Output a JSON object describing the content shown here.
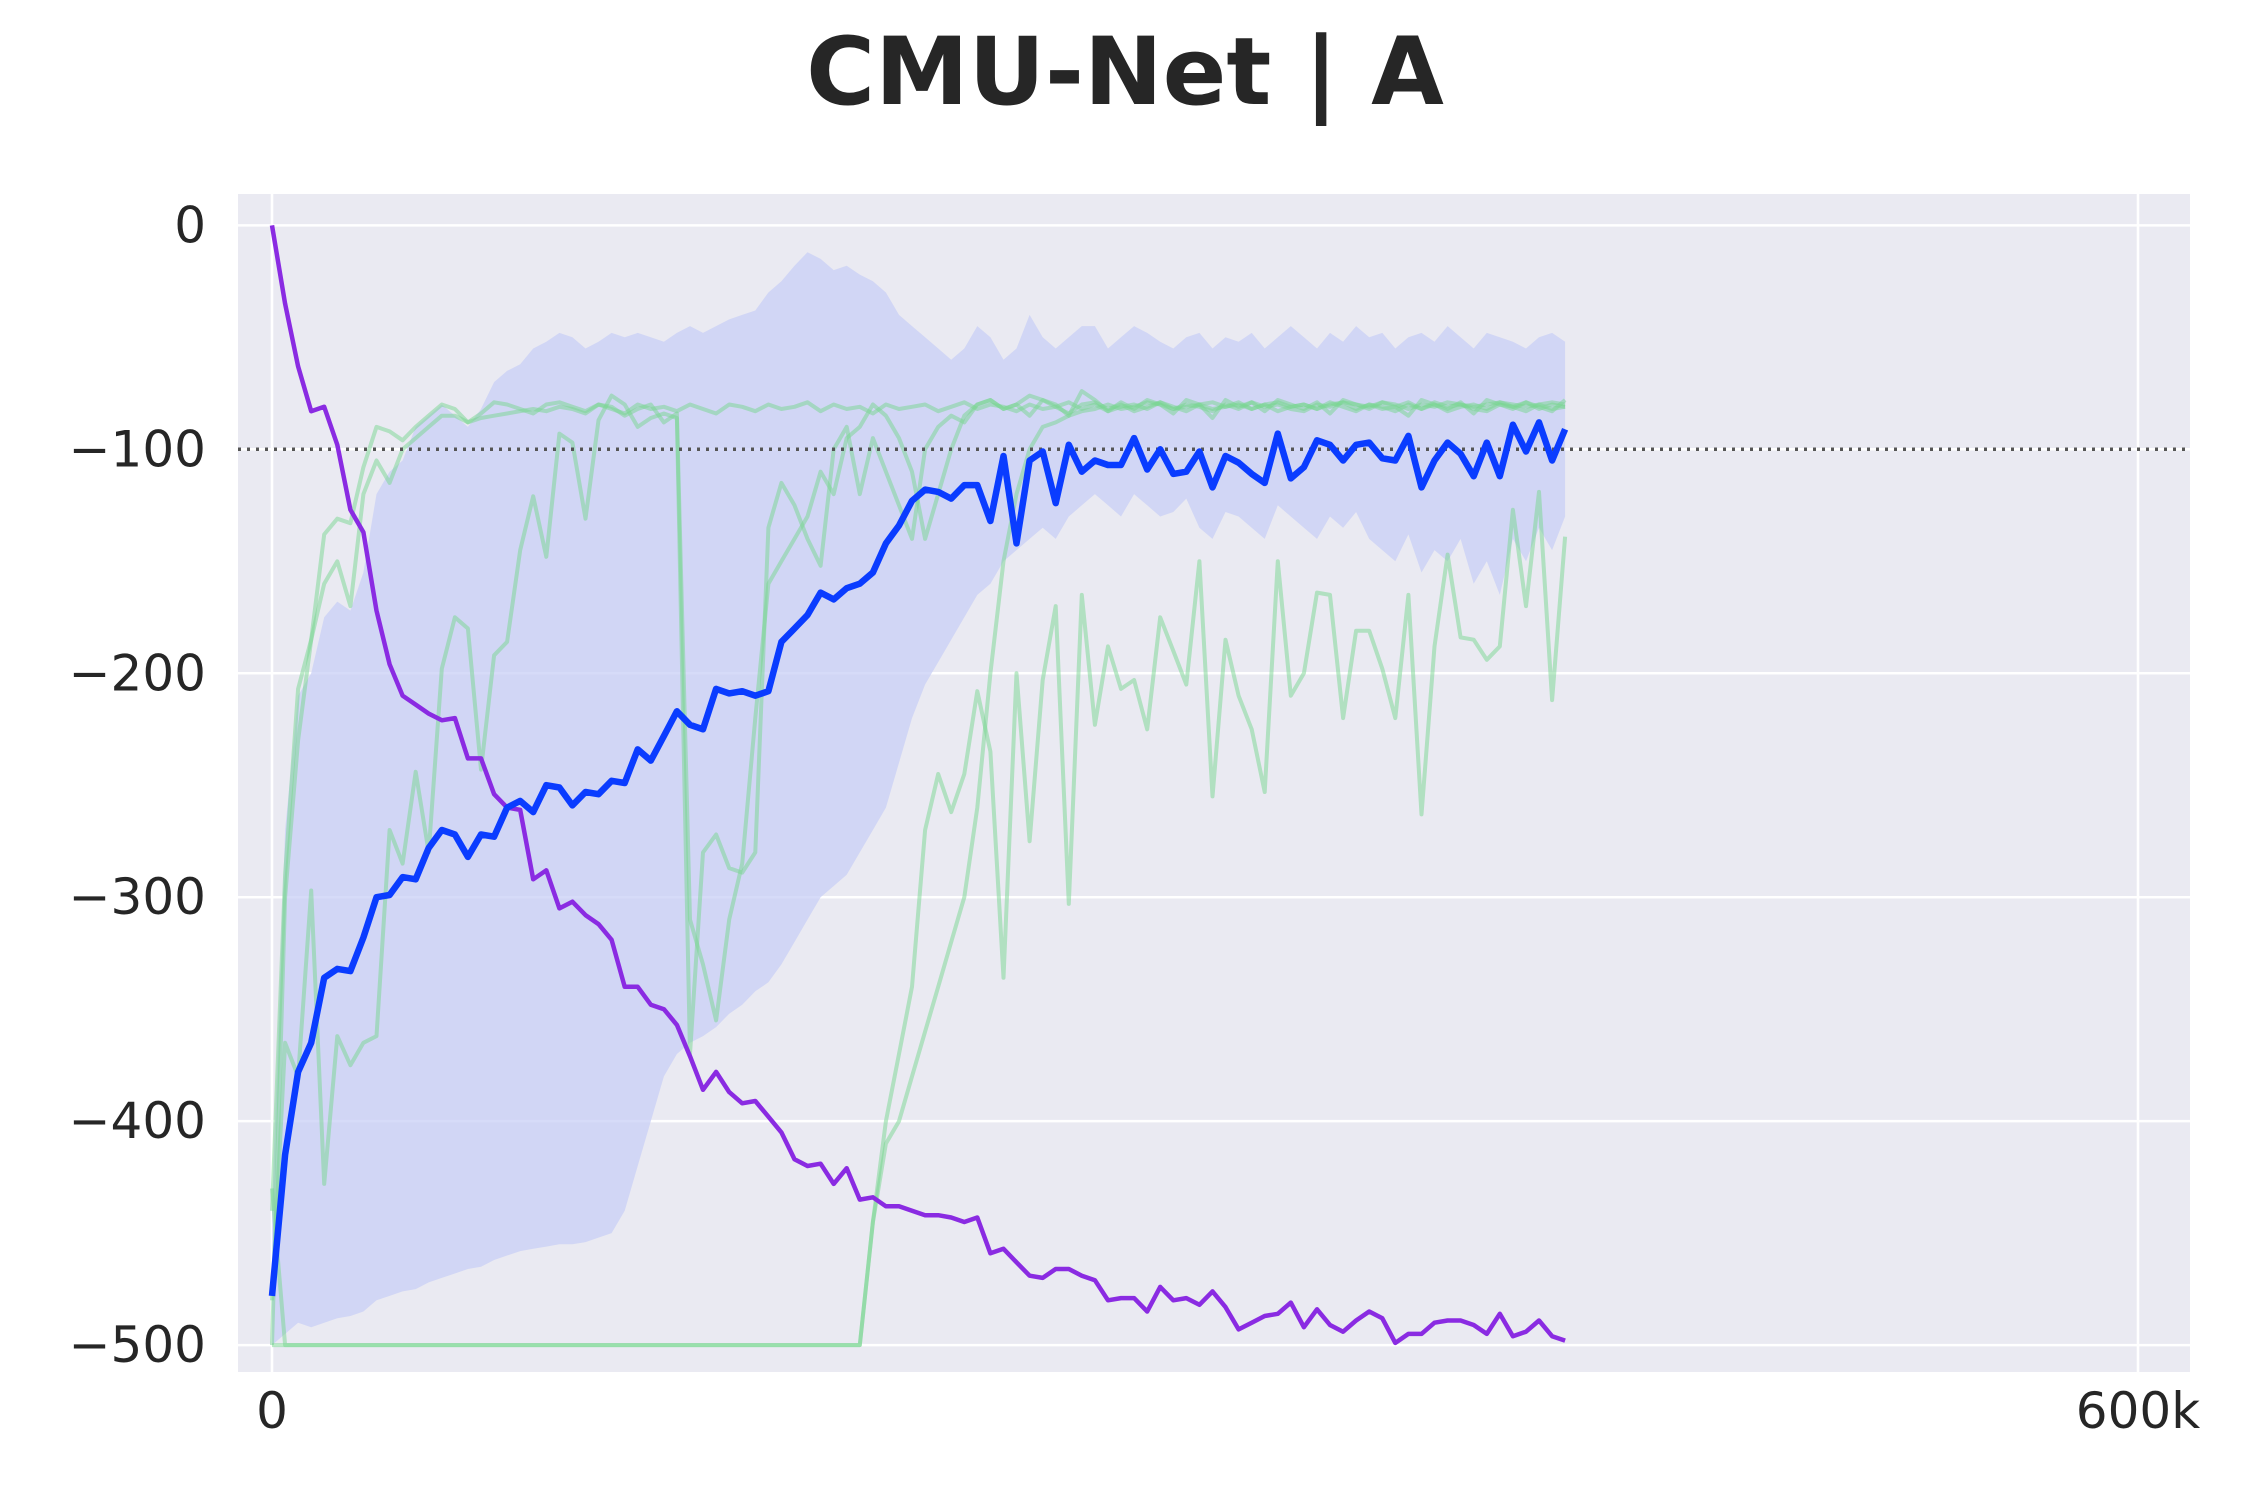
{
  "chart_data": {
    "type": "line",
    "title": "CMU-Net | A",
    "xlabel": "",
    "ylabel": "",
    "x_range": [
      0,
      630000
    ],
    "ylim": [
      -512,
      14
    ],
    "x_ticks": [
      {
        "value": 0,
        "label": "0"
      },
      {
        "value": 600000,
        "label": "600k"
      }
    ],
    "y_ticks": [
      {
        "value": 0,
        "label": "0"
      },
      {
        "value": -100,
        "label": "−100"
      },
      {
        "value": -200,
        "label": "−200"
      },
      {
        "value": -300,
        "label": "−300"
      },
      {
        "value": -400,
        "label": "−400"
      },
      {
        "value": -500,
        "label": "−500"
      }
    ],
    "reference_line": {
      "y": -100,
      "style": "dotted",
      "color": "#555555"
    },
    "grid": true,
    "background": "#eaeaf2",
    "colors": {
      "mean": "#0a3cff",
      "band": "#c8cff5",
      "runs": "#77d68f",
      "decay": "#8a2be2"
    },
    "x_step": 4200,
    "decay_curve": [
      0,
      -35,
      -63,
      -83,
      -81,
      -98,
      -127,
      -137,
      -172,
      -196,
      -210,
      -214,
      -218,
      -221,
      -220,
      -238,
      -238,
      -254,
      -260,
      -261,
      -292,
      -288,
      -305,
      -302,
      -308,
      -312,
      -319,
      -340,
      -340,
      -348,
      -350,
      -357,
      -371,
      -386,
      -378,
      -387,
      -392,
      -391,
      -398,
      -405,
      -417,
      -420,
      -419,
      -428,
      -421,
      -435,
      -434,
      -438,
      -438,
      -440,
      -442,
      -442,
      -443,
      -445,
      -443,
      -459,
      -457,
      -463,
      -469,
      -470,
      -466,
      -466,
      -469,
      -471,
      -480,
      -479,
      -479,
      -485,
      -474,
      -480,
      -479,
      -482,
      -476,
      -483,
      -493,
      -490,
      -487,
      -486,
      -481,
      -492,
      -484,
      -491,
      -494,
      -489,
      -485,
      -488,
      -499,
      -495,
      -495,
      -490,
      -489,
      -489,
      -491,
      -495,
      -486,
      -496,
      -494,
      -489,
      -496,
      -498
    ],
    "mean_curve": [
      -478,
      -415,
      -378,
      -365,
      -336,
      -332,
      -333,
      -318,
      -300,
      -299,
      -291,
      -292,
      -278,
      -270,
      -272,
      -282,
      -272,
      -273,
      -260,
      -257,
      -262,
      -250,
      -251,
      -259,
      -253,
      -254,
      -248,
      -249,
      -234,
      -239,
      -228,
      -217,
      -223,
      -225,
      -207,
      -209,
      -208,
      -210,
      -208,
      -186,
      -180,
      -174,
      -164,
      -167,
      -162,
      -160,
      -155,
      -142,
      -134,
      -123,
      -118,
      -119,
      -122,
      -116,
      -116,
      -132,
      -103,
      -142,
      -105,
      -101,
      -124,
      -98,
      -110,
      -105,
      -107,
      -107,
      -95,
      -109,
      -100,
      -111,
      -110,
      -101,
      -117,
      -103,
      -106,
      -111,
      -115,
      -93,
      -113,
      -108,
      -96,
      -98,
      -105,
      -98,
      -97,
      -104,
      -105,
      -94,
      -117,
      -105,
      -97,
      -102,
      -112,
      -97,
      -112,
      -89,
      -101,
      -88,
      -105,
      -91
    ],
    "band_upper": [
      -440,
      -270,
      -210,
      -200,
      -175,
      -168,
      -172,
      -155,
      -120,
      -110,
      -105,
      -90,
      -85,
      -80,
      -85,
      -90,
      -82,
      -70,
      -65,
      -62,
      -55,
      -52,
      -48,
      -50,
      -55,
      -52,
      -48,
      -50,
      -48,
      -50,
      -52,
      -48,
      -45,
      -48,
      -45,
      -42,
      -40,
      -38,
      -30,
      -25,
      -18,
      -12,
      -15,
      -20,
      -18,
      -22,
      -25,
      -30,
      -40,
      -45,
      -50,
      -55,
      -60,
      -55,
      -45,
      -50,
      -60,
      -55,
      -40,
      -50,
      -55,
      -50,
      -45,
      -45,
      -55,
      -50,
      -45,
      -48,
      -52,
      -55,
      -50,
      -48,
      -55,
      -50,
      -52,
      -48,
      -55,
      -50,
      -45,
      -50,
      -55,
      -48,
      -52,
      -45,
      -50,
      -48,
      -55,
      -50,
      -48,
      -52,
      -45,
      -50,
      -55,
      -48,
      -50,
      -52,
      -55,
      -50,
      -48,
      -52
    ],
    "band_lower": [
      -500,
      -495,
      -490,
      -492,
      -490,
      -488,
      -487,
      -485,
      -480,
      -478,
      -476,
      -475,
      -472,
      -470,
      -468,
      -466,
      -465,
      -462,
      -460,
      -458,
      -457,
      -456,
      -455,
      -455,
      -454,
      -452,
      -450,
      -440,
      -420,
      -400,
      -380,
      -370,
      -365,
      -362,
      -358,
      -352,
      -348,
      -342,
      -338,
      -330,
      -320,
      -310,
      -300,
      -295,
      -290,
      -280,
      -270,
      -260,
      -240,
      -220,
      -205,
      -195,
      -185,
      -175,
      -165,
      -160,
      -150,
      -145,
      -140,
      -135,
      -140,
      -130,
      -125,
      -120,
      -125,
      -130,
      -120,
      -125,
      -130,
      -128,
      -122,
      -135,
      -140,
      -128,
      -130,
      -135,
      -140,
      -125,
      -130,
      -135,
      -140,
      -130,
      -135,
      -128,
      -140,
      -145,
      -150,
      -138,
      -155,
      -145,
      -150,
      -140,
      -160,
      -150,
      -165,
      -140,
      -150,
      -135,
      -145,
      -130
    ],
    "series": [
      {
        "values": [
          -430,
          -500,
          -500,
          -500,
          -500,
          -500,
          -500,
          -500,
          -500,
          -500,
          -500,
          -500,
          -500,
          -500,
          -500,
          -500,
          -500,
          -500,
          -500,
          -500,
          -500,
          -500,
          -500,
          -500,
          -500,
          -500,
          -500,
          -500,
          -500,
          -500,
          -500,
          -500,
          -500,
          -500,
          -500,
          -500,
          -500,
          -500,
          -500,
          -500,
          -500,
          -500,
          -500,
          -500,
          -500,
          -500,
          -445,
          -400,
          -370,
          -340,
          -270,
          -245,
          -262,
          -245,
          -208,
          -235,
          -336,
          -200,
          -275,
          -203,
          -170,
          -303,
          -165,
          -223,
          -188,
          -207,
          -203,
          -225,
          -175,
          -190,
          -205,
          -150,
          -255,
          -185,
          -210,
          -225,
          -253,
          -150,
          -210,
          -200,
          -164,
          -165,
          -220,
          -181,
          -181,
          -198,
          -220,
          -165,
          -263,
          -188,
          -147,
          -184,
          -185,
          -194,
          -188,
          -127,
          -170,
          -119,
          -212,
          -139
        ]
      },
      {
        "values": [
          -500,
          -500,
          -500,
          -500,
          -500,
          -500,
          -500,
          -500,
          -500,
          -500,
          -500,
          -500,
          -500,
          -500,
          -500,
          -500,
          -500,
          -500,
          -500,
          -500,
          -500,
          -500,
          -500,
          -500,
          -500,
          -500,
          -500,
          -500,
          -500,
          -500,
          -500,
          -500,
          -500,
          -500,
          -500,
          -500,
          -500,
          -500,
          -500,
          -500,
          -500,
          -500,
          -500,
          -500,
          -500,
          -500,
          -445,
          -410,
          -400,
          -380,
          -360,
          -340,
          -320,
          -300,
          -260,
          -200,
          -150,
          -120,
          -100,
          -90,
          -88,
          -85,
          -83,
          -82,
          -80,
          -82,
          -81,
          -79,
          -80,
          -82,
          -81,
          -80,
          -79,
          -81,
          -80,
          -82,
          -80,
          -79,
          -81,
          -80,
          -82,
          -80,
          -79,
          -80,
          -81,
          -79,
          -80,
          -82,
          -80,
          -81,
          -79,
          -80,
          -81,
          -80,
          -79,
          -80,
          -81,
          -80,
          -79,
          -80
        ]
      },
      {
        "values": [
          -440,
          -290,
          -207,
          -185,
          -138,
          -131,
          -133,
          -108,
          -90,
          -92,
          -96,
          -90,
          -85,
          -80,
          -82,
          -88,
          -84,
          -79,
          -80,
          -82,
          -84,
          -80,
          -79,
          -81,
          -83,
          -80,
          -82,
          -84,
          -80,
          -82,
          -81,
          -83,
          -80,
          -82,
          -84,
          -80,
          -81,
          -83,
          -80,
          -82,
          -81,
          -79,
          -83,
          -80,
          -82,
          -81,
          -84,
          -80,
          -82,
          -81,
          -80,
          -83,
          -81,
          -79,
          -82,
          -80,
          -81,
          -83,
          -80,
          -82,
          -81,
          -79,
          -82,
          -80,
          -83,
          -81,
          -80,
          -82,
          -79,
          -81,
          -83,
          -80,
          -82,
          -81,
          -79,
          -82,
          -80,
          -83,
          -81,
          -80,
          -82,
          -79,
          -81,
          -83,
          -80,
          -82,
          -81,
          -79,
          -82,
          -80,
          -83,
          -81,
          -80,
          -82,
          -79,
          -81,
          -83,
          -80,
          -82,
          -81
        ]
      },
      {
        "values": [
          -480,
          -365,
          -380,
          -297,
          -428,
          -362,
          -375,
          -365,
          -362,
          -270,
          -285,
          -244,
          -280,
          -198,
          -175,
          -180,
          -243,
          -192,
          -186,
          -145,
          -121,
          -148,
          -93,
          -97,
          -131,
          -87,
          -76,
          -80,
          -90,
          -86,
          -84,
          -86,
          -370,
          -280,
          -272,
          -287,
          -289,
          -280,
          -135,
          -115,
          -125,
          -140,
          -152,
          -100,
          -90,
          -120,
          -95,
          -110,
          -125,
          -140,
          -100,
          -90,
          -85,
          -88,
          -80,
          -78,
          -82,
          -80,
          -85,
          -78,
          -81,
          -84,
          -80,
          -79,
          -82,
          -80,
          -83,
          -81,
          -79,
          -82,
          -80,
          -81,
          -83,
          -80,
          -82,
          -79,
          -81,
          -80,
          -82,
          -83,
          -80,
          -81,
          -79,
          -82,
          -80,
          -81,
          -83,
          -80,
          -82,
          -79,
          -81,
          -80,
          -82,
          -83,
          -80,
          -81,
          -79,
          -82,
          -80,
          -81
        ]
      },
      {
        "values": [
          -500,
          -300,
          -230,
          -185,
          -160,
          -150,
          -170,
          -120,
          -105,
          -115,
          -100,
          -95,
          -90,
          -85,
          -85,
          -88,
          -86,
          -85,
          -84,
          -83,
          -82,
          -83,
          -81,
          -82,
          -84,
          -80,
          -81,
          -85,
          -82,
          -80,
          -88,
          -84,
          -310,
          -330,
          -355,
          -310,
          -285,
          -220,
          -160,
          -150,
          -140,
          -130,
          -110,
          -120,
          -95,
          -90,
          -80,
          -85,
          -95,
          -110,
          -140,
          -120,
          -100,
          -85,
          -80,
          -78,
          -82,
          -80,
          -76,
          -78,
          -80,
          -85,
          -74,
          -78,
          -83,
          -79,
          -82,
          -78,
          -80,
          -84,
          -78,
          -80,
          -86,
          -78,
          -81,
          -79,
          -83,
          -78,
          -80,
          -82,
          -79,
          -84,
          -78,
          -80,
          -82,
          -79,
          -81,
          -85,
          -78,
          -80,
          -82,
          -79,
          -84,
          -78,
          -80,
          -82,
          -79,
          -81,
          -83,
          -78
        ]
      }
    ]
  }
}
